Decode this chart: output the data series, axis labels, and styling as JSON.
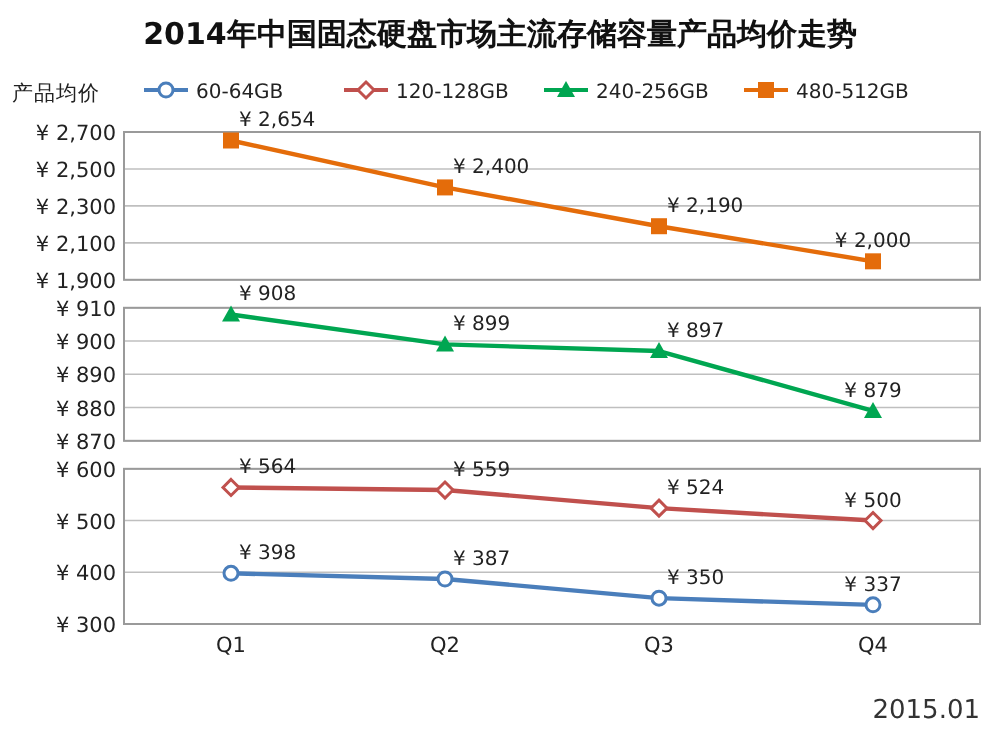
{
  "chart_data": [
    {
      "type": "line",
      "title": "2014年中国固态硬盘市场主流存储容量产品均价走势",
      "ylabel": "产品均价",
      "legend": "top",
      "grid": "y",
      "tick_labels": "y",
      "ylim": [
        1900,
        2700
      ],
      "yticks": [
        {
          "value": 1900,
          "label": "¥ 1,900"
        },
        {
          "value": 2100,
          "label": "¥ 2,100"
        },
        {
          "value": 2300,
          "label": "¥ 2,300"
        },
        {
          "value": 2500,
          "label": "¥ 2,500"
        },
        {
          "value": 2700,
          "label": "¥ 2,700"
        }
      ],
      "series": [
        {
          "name": "480-512GB",
          "color": "#e46c0a",
          "marker": "square",
          "values": [
            2654,
            2400,
            2190,
            2000
          ],
          "value_labels": [
            "¥ 2,654",
            "¥ 2,400",
            "¥ 2,190",
            "¥ 2,000"
          ]
        }
      ]
    },
    {
      "type": "line",
      "legend": "top",
      "grid": "y",
      "tick_labels": "y",
      "ylim": [
        870,
        910
      ],
      "yticks": [
        {
          "value": 870,
          "label": "¥ 870"
        },
        {
          "value": 880,
          "label": "¥ 880"
        },
        {
          "value": 890,
          "label": "¥ 890"
        },
        {
          "value": 900,
          "label": "¥ 900"
        },
        {
          "value": 910,
          "label": "¥ 910"
        }
      ],
      "series": [
        {
          "name": "240-256GB",
          "color": "#00a651",
          "marker": "triangle",
          "values": [
            908,
            899,
            897,
            879
          ],
          "value_labels": [
            "¥ 908",
            "¥ 899",
            "¥ 897",
            "¥ 879"
          ]
        }
      ]
    },
    {
      "type": "line",
      "legend": "top",
      "grid": "y",
      "categories": [
        "Q1",
        "Q2",
        "Q3",
        "Q4"
      ],
      "ylim": [
        300,
        600
      ],
      "yticks": [
        {
          "value": 300,
          "label": "¥ 300"
        },
        {
          "value": 400,
          "label": "¥ 400"
        },
        {
          "value": 500,
          "label": "¥ 500"
        },
        {
          "value": 600,
          "label": "¥ 600"
        }
      ],
      "annotations": [
        "2015.01"
      ],
      "series": [
        {
          "name": "60-64GB",
          "color": "#4a7ebb",
          "marker": "circle",
          "values": [
            398,
            387,
            350,
            337
          ],
          "value_labels": [
            "¥ 398",
            "¥ 387",
            "¥ 350",
            "¥ 337"
          ]
        },
        {
          "name": "120-128GB",
          "color": "#c0504d",
          "marker": "diamond",
          "values": [
            564,
            559,
            524,
            500
          ],
          "value_labels": [
            "¥ 564",
            "¥ 559",
            "¥ 524",
            "¥ 500"
          ]
        }
      ]
    }
  ]
}
